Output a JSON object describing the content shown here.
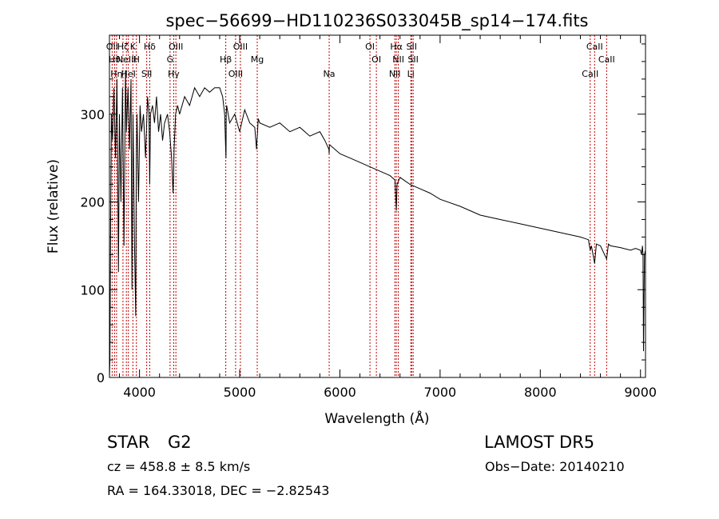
{
  "chart_data": {
    "type": "line",
    "title": "spec−56699−HD110236S033045B_sp14−174.fits",
    "xlabel": "Wavelength (Å)",
    "ylabel": "Flux (relative)",
    "xlim": [
      3700,
      9050
    ],
    "ylim": [
      0,
      390
    ],
    "xticks": [
      4000,
      5000,
      6000,
      7000,
      8000,
      9000
    ],
    "xtick_labels": [
      "4000",
      "5000",
      "6000",
      "7000",
      "8000",
      "9000"
    ],
    "yticks": [
      0,
      100,
      200,
      300
    ],
    "ytick_labels": [
      "0",
      "100",
      "200",
      "300"
    ],
    "series": [
      {
        "color": "#000000",
        "x": [
          3700,
          3705,
          3712,
          3720,
          3730,
          3745,
          3760,
          3775,
          3790,
          3800,
          3815,
          3830,
          3845,
          3860,
          3870,
          3885,
          3900,
          3915,
          3925,
          3935,
          3950,
          3962,
          3968,
          3975,
          3990,
          4005,
          4020,
          4040,
          4060,
          4080,
          4095,
          4102,
          4110,
          4130,
          4150,
          4170,
          4190,
          4210,
          4230,
          4250,
          4280,
          4300,
          4320,
          4335,
          4340,
          4345,
          4360,
          4380,
          4400,
          4450,
          4500,
          4550,
          4600,
          4650,
          4700,
          4750,
          4800,
          4830,
          4850,
          4860,
          4863,
          4866,
          4870,
          4900,
          4950,
          5000,
          5050,
          5100,
          5150,
          5168,
          5172,
          5176,
          5185,
          5200,
          5300,
          5400,
          5500,
          5600,
          5700,
          5800,
          5850,
          5890,
          5893,
          5896,
          5900,
          6000,
          6100,
          6200,
          6300,
          6400,
          6500,
          6550,
          6563,
          6570,
          6600,
          6700,
          6800,
          6900,
          7000,
          7200,
          7400,
          7600,
          7800,
          8000,
          8200,
          8400,
          8480,
          8498,
          8510,
          8542,
          8560,
          8600,
          8662,
          8680,
          8700,
          8800,
          8900,
          8950,
          9000,
          9010,
          9020,
          9025,
          9030,
          9040,
          9050
        ],
        "y": [
          0,
          20,
          180,
          300,
          270,
          330,
          250,
          340,
          120,
          300,
          200,
          330,
          150,
          350,
          280,
          330,
          260,
          340,
          100,
          300,
          150,
          70,
          250,
          300,
          200,
          310,
          280,
          300,
          250,
          320,
          300,
          220,
          300,
          310,
          290,
          320,
          280,
          300,
          270,
          290,
          300,
          280,
          250,
          210,
          230,
          260,
          300,
          310,
          300,
          320,
          310,
          330,
          320,
          330,
          325,
          330,
          330,
          320,
          300,
          260,
          250,
          300,
          310,
          290,
          300,
          280,
          305,
          290,
          285,
          260,
          270,
          275,
          295,
          290,
          285,
          290,
          280,
          285,
          275,
          280,
          270,
          260,
          255,
          265,
          265,
          255,
          250,
          245,
          240,
          235,
          230,
          225,
          190,
          220,
          228,
          220,
          215,
          210,
          203,
          195,
          185,
          180,
          175,
          170,
          165,
          160,
          157,
          145,
          150,
          130,
          152,
          150,
          135,
          152,
          150,
          148,
          145,
          147,
          145,
          140,
          150,
          140,
          30,
          140,
          145
        ]
      }
    ],
    "line_labels": [
      {
        "x": 3727,
        "label": "OII"
      },
      {
        "x": 3751,
        "label": "Hθ"
      },
      {
        "x": 3771,
        "label": "Hη"
      },
      {
        "x": 3835,
        "label": "Hζ"
      },
      {
        "x": 3869,
        "label": "NeIII"
      },
      {
        "x": 3889,
        "label": "HeI"
      },
      {
        "x": 3934,
        "label": "K"
      },
      {
        "x": 3969,
        "label": "H"
      },
      {
        "x": 4072,
        "label": "SII"
      },
      {
        "x": 4102,
        "label": "Hδ"
      },
      {
        "x": 4305,
        "label": "G"
      },
      {
        "x": 4341,
        "label": "Hγ"
      },
      {
        "x": 4363,
        "label": "OIII"
      },
      {
        "x": 4861,
        "label": "Hβ"
      },
      {
        "x": 4959,
        "label": "OIII"
      },
      {
        "x": 5007,
        "label": "OIII"
      },
      {
        "x": 5175,
        "label": "Mg"
      },
      {
        "x": 5893,
        "label": "Na"
      },
      {
        "x": 6300,
        "label": "OI"
      },
      {
        "x": 6364,
        "label": "OI"
      },
      {
        "x": 6548,
        "label": "NII"
      },
      {
        "x": 6563,
        "label": "Hα"
      },
      {
        "x": 6583,
        "label": "NII"
      },
      {
        "x": 6708,
        "label": "Li"
      },
      {
        "x": 6716,
        "label": "SII"
      },
      {
        "x": 6731,
        "label": "SII"
      },
      {
        "x": 8498,
        "label": "CaII"
      },
      {
        "x": 8542,
        "label": "CaII"
      },
      {
        "x": 8662,
        "label": "CaII"
      }
    ]
  },
  "info": {
    "class": "STAR",
    "subclass": "G2",
    "survey": "LAMOST  DR5",
    "cz": "cz = 458.8 ± 8.5 km/s",
    "obsdate": "Obs−Date: 20140210",
    "radec": "RA = 164.33018, DEC =  −2.82543"
  }
}
